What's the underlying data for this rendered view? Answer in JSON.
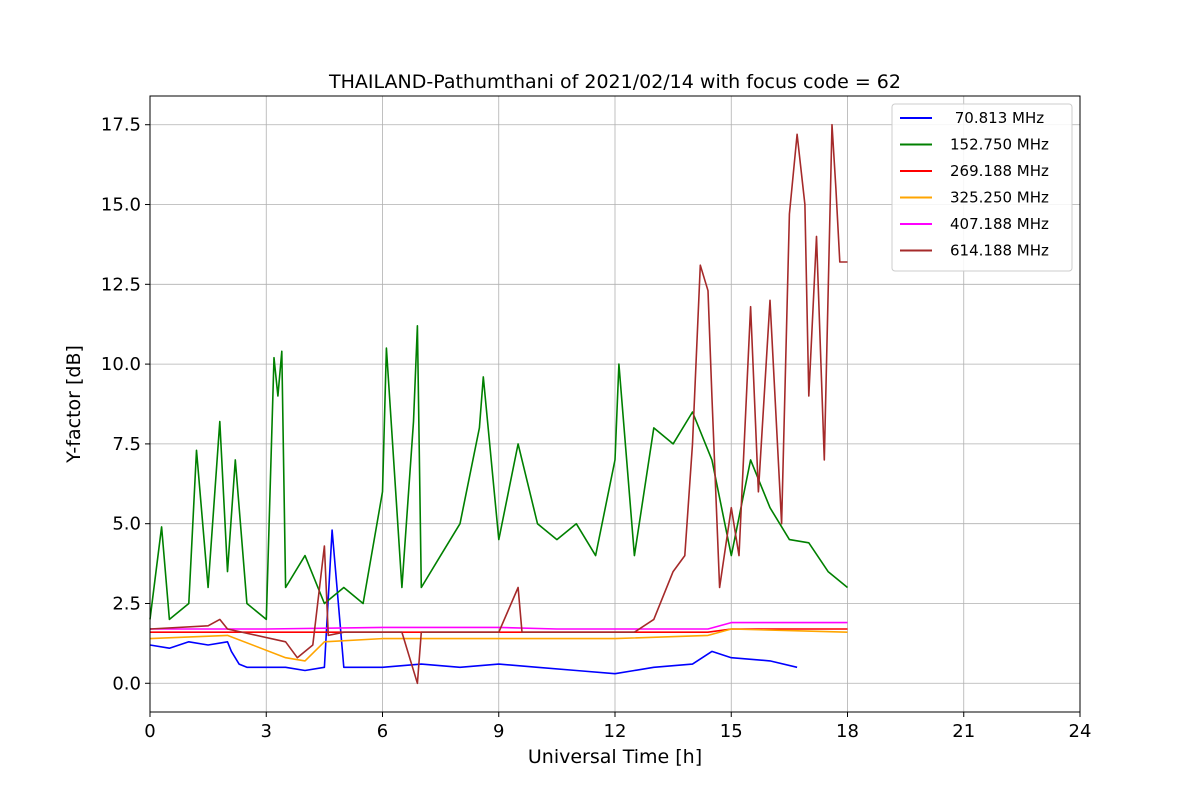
{
  "chart_data": {
    "type": "line",
    "title": "THAILAND-Pathumthani of 2021/02/14 with focus code = 62",
    "xlabel": "Universal Time [h]",
    "ylabel": "Y-factor [dB]",
    "xlim": [
      0,
      24
    ],
    "ylim": [
      -0.9,
      18.4
    ],
    "xticks": [
      0,
      3,
      6,
      9,
      12,
      15,
      18,
      21,
      24
    ],
    "yticks": [
      0.0,
      2.5,
      5.0,
      7.5,
      10.0,
      12.5,
      15.0,
      17.5
    ],
    "xtick_labels": [
      "0",
      "3",
      "6",
      "9",
      "12",
      "15",
      "18",
      "21",
      "24"
    ],
    "ytick_labels": [
      "0.0",
      "2.5",
      "5.0",
      "7.5",
      "10.0",
      "12.5",
      "15.0",
      "17.5"
    ],
    "grid": true,
    "legend_position": "top-right",
    "series": [
      {
        "name": " 70.813 MHz",
        "color": "#0000ff",
        "x": [
          0,
          0.5,
          1.0,
          1.5,
          2.0,
          2.1,
          2.3,
          2.5,
          3.0,
          3.5,
          4.0,
          4.5,
          4.7,
          5.0,
          6.0,
          7.0,
          8.0,
          9.0,
          10.0,
          11.0,
          12.0,
          12.5,
          13.0,
          14.0,
          14.5,
          15.0,
          16.0,
          16.7
        ],
        "y": [
          1.2,
          1.1,
          1.3,
          1.2,
          1.3,
          1.0,
          0.6,
          0.5,
          0.5,
          0.5,
          0.4,
          0.5,
          4.8,
          0.5,
          0.5,
          0.6,
          0.5,
          0.6,
          0.5,
          0.4,
          0.3,
          0.4,
          0.5,
          0.6,
          1.0,
          0.8,
          0.7,
          0.5
        ]
      },
      {
        "name": "152.750 MHz",
        "color": "#008000",
        "x": [
          0,
          0.3,
          0.5,
          1.0,
          1.2,
          1.5,
          1.8,
          2.0,
          2.2,
          2.5,
          3.0,
          3.2,
          3.3,
          3.4,
          3.5,
          4.0,
          4.5,
          5.0,
          5.5,
          6.0,
          6.1,
          6.5,
          6.8,
          6.9,
          7.0,
          7.5,
          8.0,
          8.5,
          8.6,
          9.0,
          9.5,
          10.0,
          10.5,
          11.0,
          11.5,
          12.0,
          12.1,
          12.5,
          13.0,
          13.5,
          14.0,
          14.5,
          15.0,
          15.5,
          16.0,
          16.5,
          17.0,
          17.5,
          18.0
        ],
        "y": [
          2.0,
          4.9,
          2.0,
          2.5,
          7.3,
          3.0,
          8.2,
          3.5,
          7.0,
          2.5,
          2.0,
          10.2,
          9.0,
          10.4,
          3.0,
          4.0,
          2.5,
          3.0,
          2.5,
          6.0,
          10.5,
          3.0,
          8.2,
          11.2,
          3.0,
          4.0,
          5.0,
          8.0,
          9.6,
          4.5,
          7.5,
          5.0,
          4.5,
          5.0,
          4.0,
          7.0,
          10.0,
          4.0,
          8.0,
          7.5,
          8.5,
          7.0,
          4.0,
          7.0,
          5.5,
          4.5,
          4.4,
          3.5,
          3.0
        ]
      },
      {
        "name": "269.188 MHz",
        "color": "#ff0000",
        "x": [
          0,
          3,
          6,
          9,
          12,
          14.4,
          15,
          18
        ],
        "y": [
          1.6,
          1.6,
          1.6,
          1.6,
          1.6,
          1.6,
          1.7,
          1.7
        ]
      },
      {
        "name": "325.250 MHz",
        "color": "#ffa500",
        "x": [
          0,
          2.0,
          3.5,
          4.0,
          4.5,
          6.0,
          9.0,
          12.0,
          14.4,
          15.0,
          18.0
        ],
        "y": [
          1.4,
          1.5,
          0.8,
          0.7,
          1.3,
          1.4,
          1.4,
          1.4,
          1.5,
          1.7,
          1.6
        ]
      },
      {
        "name": "407.188 MHz",
        "color": "#ff00ff",
        "x": [
          0,
          3,
          6,
          9,
          10.5,
          12,
          14.4,
          15,
          18
        ],
        "y": [
          1.7,
          1.7,
          1.75,
          1.75,
          1.7,
          1.7,
          1.7,
          1.9,
          1.9
        ]
      },
      {
        "name": "614.188 MHz",
        "color": "#a52a2a",
        "x": [
          0,
          1.5,
          1.8,
          2.0,
          3.5,
          3.8,
          4.2,
          4.5,
          4.6,
          5.0,
          6.5,
          6.9,
          7.0,
          9.0,
          9.5,
          9.6,
          10.0,
          12.5,
          13.0,
          13.5,
          13.8,
          14.0,
          14.2,
          14.4,
          14.5,
          14.7,
          15.0,
          15.2,
          15.5,
          15.7,
          16.0,
          16.3,
          16.5,
          16.7,
          16.9,
          17.0,
          17.2,
          17.4,
          17.6,
          17.7,
          17.8,
          18.0
        ],
        "y": [
          1.7,
          1.8,
          2.0,
          1.7,
          1.3,
          0.8,
          1.2,
          4.3,
          1.5,
          1.6,
          1.6,
          0.0,
          1.6,
          1.6,
          3.0,
          1.6,
          1.6,
          1.6,
          2.0,
          3.5,
          4.0,
          7.5,
          13.1,
          12.3,
          9.0,
          3.0,
          5.5,
          4.0,
          11.8,
          6.0,
          12.0,
          5.0,
          14.7,
          17.2,
          15.0,
          9.0,
          14.0,
          7.0,
          17.5,
          15.5,
          13.2,
          13.2
        ]
      }
    ]
  }
}
